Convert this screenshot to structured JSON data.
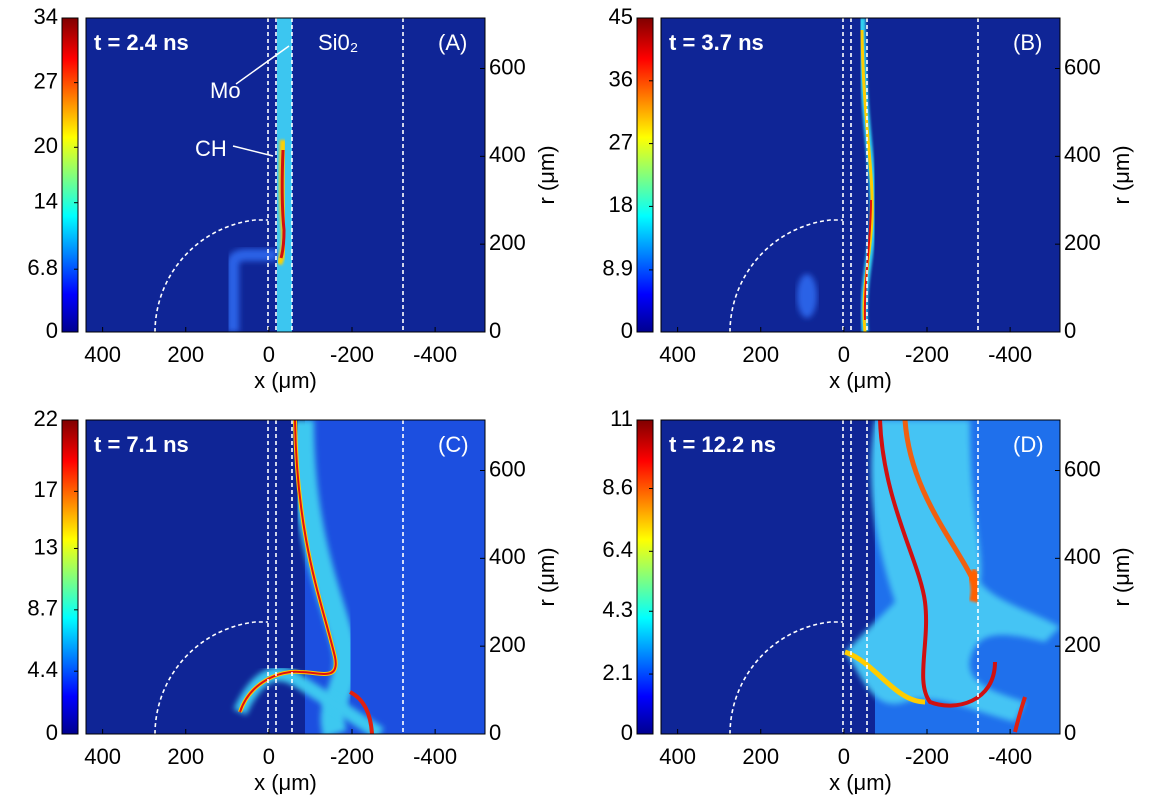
{
  "chart_data": [
    {
      "type": "heatmap",
      "annotation": "t = 2.4 ns",
      "panel_label": "(A)",
      "xlabel": "x (μm)",
      "ylabel": "r (μm)",
      "xlim": [
        440,
        -520
      ],
      "xticks": [
        400,
        200,
        0,
        -200,
        -400
      ],
      "ylim": [
        0,
        715
      ],
      "yticks": [
        0,
        200,
        400,
        600
      ],
      "colorbar": {
        "lim": [
          0,
          34
        ],
        "ticks": [
          0,
          6.8,
          14,
          20,
          27,
          34
        ]
      },
      "region_labels": [
        "Mo",
        "CH",
        "Si0₂"
      ]
    },
    {
      "type": "heatmap",
      "annotation": "t = 3.7 ns",
      "panel_label": "(B)",
      "xlabel": "x (μm)",
      "ylabel": "r (μm)",
      "xlim": [
        440,
        -520
      ],
      "xticks": [
        400,
        200,
        0,
        -200,
        -400
      ],
      "ylim": [
        0,
        715
      ],
      "yticks": [
        0,
        200,
        400,
        600
      ],
      "colorbar": {
        "lim": [
          0,
          45
        ],
        "ticks": [
          0,
          8.9,
          18,
          27,
          36,
          45
        ]
      }
    },
    {
      "type": "heatmap",
      "annotation": "t = 7.1 ns",
      "panel_label": "(C)",
      "xlabel": "x (μm)",
      "ylabel": "r (μm)",
      "xlim": [
        440,
        -520
      ],
      "xticks": [
        400,
        200,
        0,
        -200,
        -400
      ],
      "ylim": [
        0,
        715
      ],
      "yticks": [
        0,
        200,
        400,
        600
      ],
      "colorbar": {
        "lim": [
          0,
          22
        ],
        "ticks": [
          0,
          4.4,
          8.7,
          13,
          17,
          22
        ]
      }
    },
    {
      "type": "heatmap",
      "annotation": "t = 12.2 ns",
      "panel_label": "(D)",
      "xlabel": "x (μm)",
      "ylabel": "r (μm)",
      "xlim": [
        440,
        -520
      ],
      "xticks": [
        400,
        200,
        0,
        -200,
        -400
      ],
      "ylim": [
        0,
        715
      ],
      "yticks": [
        0,
        200,
        400,
        600
      ],
      "colorbar": {
        "lim": [
          0,
          11
        ],
        "ticks": [
          0,
          2.1,
          4.3,
          6.4,
          8.6,
          11
        ]
      }
    }
  ]
}
